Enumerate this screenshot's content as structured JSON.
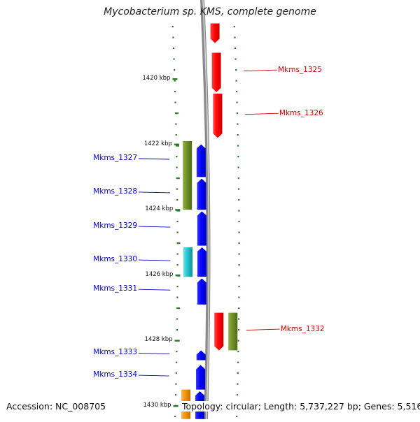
{
  "title": "Mycobacterium sp. KMS, complete genome",
  "footer": {
    "accession": "Accession: NC_008705",
    "topology": "Topology: circular; Length: 5,737,227 bp; Genes: 5,516"
  },
  "colors": {
    "forward_gene": "#cc0000",
    "reverse_gene": "#0000cc",
    "olive": "#6b8e23",
    "cyan": "#20c0c8",
    "orange": "#f0900a",
    "tick": "#2a7a2a",
    "backbone": "#888888"
  },
  "ruler": [
    {
      "label": "1420 kbp",
      "kbp": 1420
    },
    {
      "label": "1422 kbp",
      "kbp": 1422
    },
    {
      "label": "1424 kbp",
      "kbp": 1424
    },
    {
      "label": "1426 kbp",
      "kbp": 1426
    },
    {
      "label": "1428 kbp",
      "kbp": 1428
    },
    {
      "label": "1430 kbp",
      "kbp": 1430
    }
  ],
  "genes": [
    {
      "name": "",
      "strand": "+",
      "start_kbp": 1418.3,
      "end_kbp": 1418.9,
      "ring": "outer-right",
      "color": "#ff0000"
    },
    {
      "name": "Mkms_1325",
      "strand": "+",
      "start_kbp": 1419.2,
      "end_kbp": 1420.4,
      "ring": "outer-right",
      "color": "#ff0000"
    },
    {
      "name": "Mkms_1326",
      "strand": "+",
      "start_kbp": 1420.45,
      "end_kbp": 1421.8,
      "ring": "outer-right",
      "color": "#ff0000"
    },
    {
      "name": "Mkms_1327",
      "strand": "-",
      "start_kbp": 1422.0,
      "end_kbp": 1423.0,
      "ring": "inner-left",
      "color": "#0000ff"
    },
    {
      "name": "Mkms_1328",
      "strand": "-",
      "start_kbp": 1423.05,
      "end_kbp": 1424.0,
      "ring": "inner-left",
      "color": "#0000ff"
    },
    {
      "name": "Mkms_1329",
      "strand": "-",
      "start_kbp": 1424.05,
      "end_kbp": 1425.1,
      "ring": "inner-left",
      "color": "#0000ff"
    },
    {
      "name": "Mkms_1330",
      "strand": "-",
      "start_kbp": 1425.15,
      "end_kbp": 1426.05,
      "ring": "inner-left",
      "color": "#0000ff"
    },
    {
      "name": "Mkms_1331",
      "strand": "-",
      "start_kbp": 1426.1,
      "end_kbp": 1426.9,
      "ring": "inner-left",
      "color": "#0000ff"
    },
    {
      "name": "Mkms_1332",
      "strand": "+",
      "start_kbp": 1427.15,
      "end_kbp": 1428.3,
      "ring": "outer-right",
      "color": "#ff0000"
    },
    {
      "name": "Mkms_1333",
      "strand": "-",
      "start_kbp": 1428.3,
      "end_kbp": 1428.6,
      "ring": "inner-left",
      "color": "#0000ff"
    },
    {
      "name": "Mkms_1334",
      "strand": "-",
      "start_kbp": 1428.75,
      "end_kbp": 1429.5,
      "ring": "inner-left",
      "color": "#0000ff"
    },
    {
      "name": "",
      "strand": "-",
      "start_kbp": 1429.55,
      "end_kbp": 1430.4,
      "ring": "inner-left",
      "color": "#0000ff"
    }
  ],
  "features": [
    {
      "ring": "cog-left",
      "start_kbp": 1421.9,
      "end_kbp": 1424.0,
      "color": "#6b8e23"
    },
    {
      "ring": "cog-left",
      "start_kbp": 1425.15,
      "end_kbp": 1426.05,
      "color": "#20c0c8"
    },
    {
      "ring": "cog-right",
      "start_kbp": 1427.15,
      "end_kbp": 1428.3,
      "color": "#6b8e23"
    },
    {
      "ring": "cog-left",
      "start_kbp": 1429.5,
      "end_kbp": 1430.4,
      "color": "#f0900a"
    }
  ]
}
